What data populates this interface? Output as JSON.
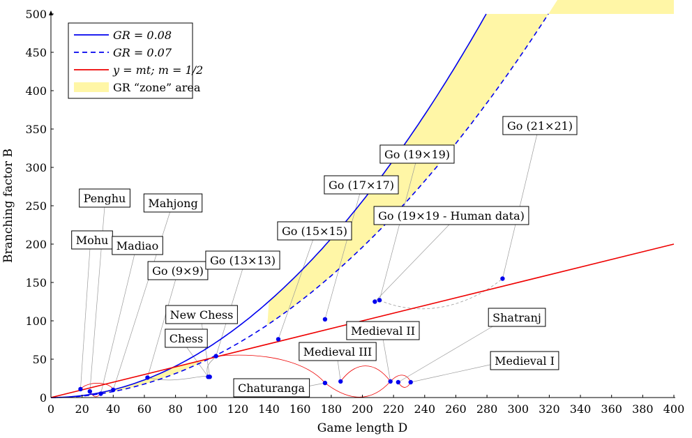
{
  "chart_data": {
    "type": "line",
    "xlabel": "Game length D",
    "ylabel": "Branching factor B",
    "xlim": [
      0,
      400
    ],
    "ylim": [
      0,
      500
    ],
    "x_ticks": [
      "0",
      "20",
      "40",
      "60",
      "80",
      "100",
      "120",
      "140",
      "160",
      "180",
      "200",
      "220",
      "240",
      "260",
      "280",
      "300",
      "320",
      "340",
      "360",
      "380",
      "400"
    ],
    "y_ticks": [
      "0",
      "50",
      "100",
      "150",
      "200",
      "250",
      "300",
      "350",
      "400",
      "450",
      "500"
    ],
    "grid": false,
    "legend_position": "top-left",
    "colors": {
      "blue": "#0000ee",
      "red": "#ee0000",
      "zone": "#fff6a6",
      "leader": "#9a9a9a",
      "point": "#0000ee"
    },
    "series": [
      {
        "name": "GR = 0.08",
        "kind": "curve",
        "rate": 0.08,
        "style": "solid",
        "color": "#0000ee"
      },
      {
        "name": "GR = 0.07",
        "kind": "curve",
        "rate": 0.07,
        "style": "dashed",
        "color": "#0000ee"
      },
      {
        "name": "y = mt; m = 1/2",
        "kind": "line",
        "slope": 0.5,
        "style": "solid",
        "color": "#ee0000"
      },
      {
        "name": "GR “zone” area",
        "kind": "area",
        "color": "#fff6a6"
      }
    ],
    "points": [
      {
        "label": "Mohu",
        "x": 19,
        "y": 11
      },
      {
        "label": "Penghu",
        "x": 25,
        "y": 8
      },
      {
        "label": "Madiao",
        "x": 32,
        "y": 5
      },
      {
        "label": "Mahjong",
        "x": 40,
        "y": 10
      },
      {
        "label": "Go (9×9)",
        "x": 62,
        "y": 26
      },
      {
        "label": "Chess",
        "x": 101,
        "y": 27
      },
      {
        "label": "New Chess",
        "x": 102,
        "y": 27
      },
      {
        "label": "Go (13×13)",
        "x": 106,
        "y": 54
      },
      {
        "label": "Go (15×15)",
        "x": 146,
        "y": 76
      },
      {
        "label": "Go (17×17)",
        "x": 176,
        "y": 102
      },
      {
        "label": "Go (19×19 - Human data)",
        "x": 208,
        "y": 125
      },
      {
        "label": "Go (19×19)",
        "x": 211,
        "y": 127
      },
      {
        "label": "Go (21×21)",
        "x": 290,
        "y": 155
      },
      {
        "label": "Chaturanga",
        "x": 176,
        "y": 19
      },
      {
        "label": "Medieval III",
        "x": 186,
        "y": 21
      },
      {
        "label": "Medieval II",
        "x": 218,
        "y": 21
      },
      {
        "label": "Shatranj",
        "x": 223,
        "y": 20
      },
      {
        "label": "Medieval I",
        "x": 231,
        "y": 20
      }
    ],
    "legend": [
      {
        "label": "GR = 0.08",
        "style": "solid",
        "color": "#0000ee"
      },
      {
        "label": "GR = 0.07",
        "style": "dashed",
        "color": "#0000ee"
      },
      {
        "label": "y = mt; m = 1/2",
        "style": "solid",
        "color": "#ee0000"
      },
      {
        "label": "GR “zone” area",
        "style": "area",
        "color": "#fff6a6"
      }
    ]
  }
}
